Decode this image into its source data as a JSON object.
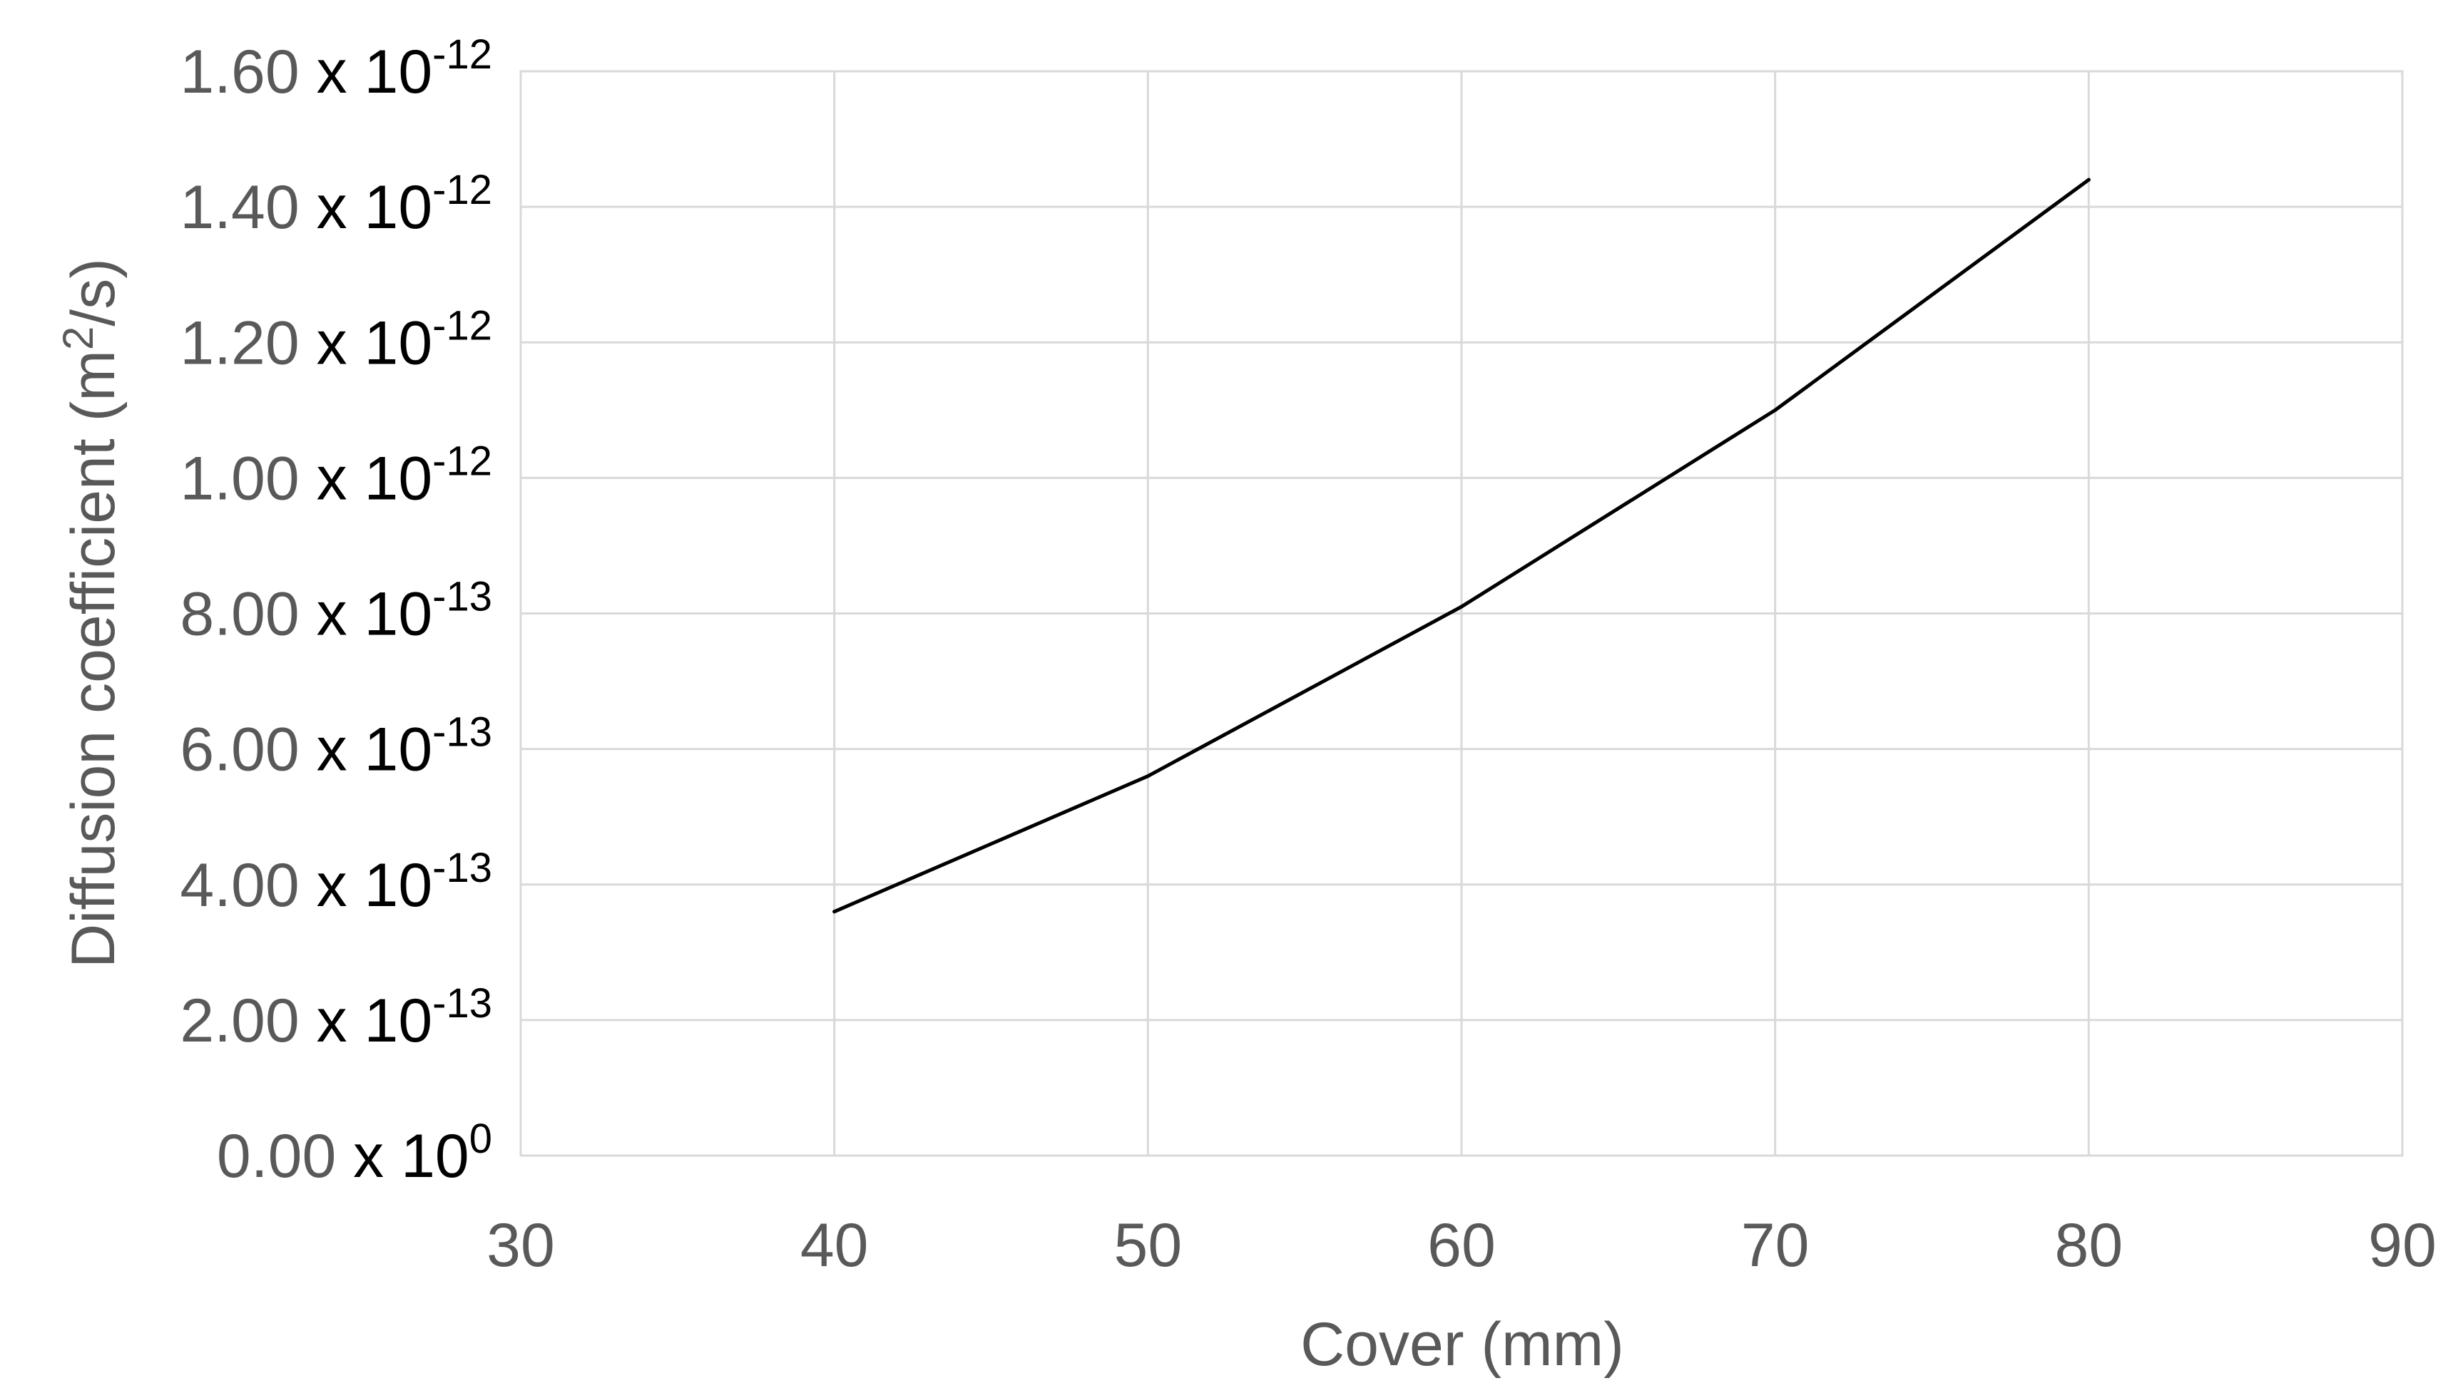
{
  "chart_data": {
    "type": "line",
    "title": "",
    "xlabel": "Cover (mm)",
    "ylabel": "Diffusion coefficient (m²/s)",
    "ylabel_parts": {
      "pre": "Diffusion coefficient (m",
      "sup": "2",
      "post": "/s)"
    },
    "xlim": [
      30,
      90
    ],
    "ylim": [
      0,
      1.6e-12
    ],
    "x_ticks": [
      "30",
      "40",
      "50",
      "60",
      "70",
      "80",
      "90"
    ],
    "y_ticks": [
      {
        "value": 0,
        "mantissa": "0.00",
        "base": "x 10",
        "exp": "0"
      },
      {
        "value": 2e-13,
        "mantissa": "2.00",
        "base": "x 10",
        "exp": "-13"
      },
      {
        "value": 4e-13,
        "mantissa": "4.00",
        "base": "x 10",
        "exp": "-13"
      },
      {
        "value": 6e-13,
        "mantissa": "6.00",
        "base": "x 10",
        "exp": "-13"
      },
      {
        "value": 8e-13,
        "mantissa": "8.00",
        "base": "x 10",
        "exp": "-13"
      },
      {
        "value": 1e-12,
        "mantissa": "1.00",
        "base": "x 10",
        "exp": "-12"
      },
      {
        "value": 1.2e-12,
        "mantissa": "1.20",
        "base": "x 10",
        "exp": "-12"
      },
      {
        "value": 1.4e-12,
        "mantissa": "1.40",
        "base": "x 10",
        "exp": "-12"
      },
      {
        "value": 1.6e-12,
        "mantissa": "1.60",
        "base": "x 10",
        "exp": "-12"
      }
    ],
    "grid": true,
    "legend": "none",
    "series": [
      {
        "x": [
          40,
          50,
          60,
          70,
          80
        ],
        "y": [
          3.6e-13,
          5.6e-13,
          8.1e-13,
          1.1e-12,
          1.44e-12
        ],
        "color": "#000000"
      }
    ]
  }
}
